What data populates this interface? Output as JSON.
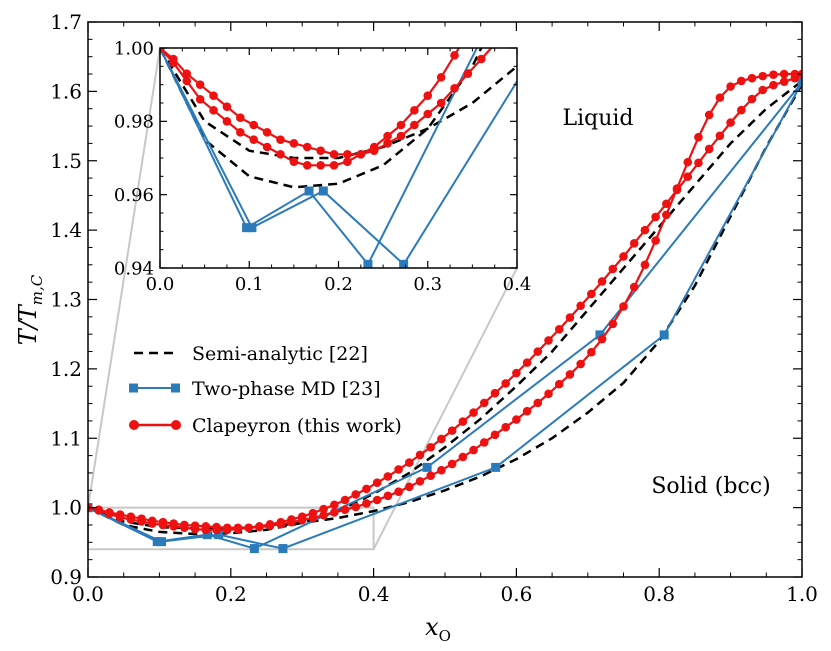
{
  "chart_data": {
    "type": "line",
    "xlabel": "x",
    "xlabel_sub": "O",
    "ylabel": "T/T",
    "ylabel_sub": "m,C",
    "xlim": [
      0.0,
      1.0
    ],
    "ylim": [
      0.9,
      1.7
    ],
    "xticks": [
      "0.0",
      "0.2",
      "0.4",
      "0.6",
      "0.8",
      "1.0"
    ],
    "yticks": [
      "0.9",
      "1.0",
      "1.1",
      "1.2",
      "1.3",
      "1.4",
      "1.5",
      "1.6",
      "1.7"
    ],
    "annotations": {
      "liquid": "Liquid",
      "solid": "Solid (bcc)"
    },
    "legend": {
      "placement": "left-middle",
      "entries": [
        "Semi-analytic [22]",
        "Two-phase MD [23]",
        "Clapeyron (this work)"
      ]
    },
    "colors": {
      "semi": "#000000",
      "md": "#2b7bba",
      "clap": "#ee1111",
      "box": "#c8c8c8"
    },
    "series": [
      {
        "name": "Semi-analytic [22]",
        "style": "dashed",
        "branch": "liquidus",
        "x": [
          0.0,
          0.05,
          0.1,
          0.15,
          0.2,
          0.25,
          0.3,
          0.35,
          0.4,
          0.45,
          0.5,
          0.55,
          0.6,
          0.65,
          0.7,
          0.75,
          0.8,
          0.85,
          0.9,
          0.95,
          1.0
        ],
        "y": [
          1.0,
          0.975,
          0.965,
          0.962,
          0.963,
          0.968,
          0.978,
          0.995,
          1.02,
          1.05,
          1.087,
          1.128,
          1.175,
          1.225,
          1.285,
          1.345,
          1.405,
          1.465,
          1.525,
          1.575,
          1.615
        ]
      },
      {
        "name": "Semi-analytic [22]",
        "style": "dashed",
        "branch": "solidus",
        "x": [
          0.0,
          0.05,
          0.1,
          0.15,
          0.2,
          0.25,
          0.3,
          0.35,
          0.4,
          0.45,
          0.5,
          0.55,
          0.6,
          0.65,
          0.7,
          0.75,
          0.8,
          0.85,
          0.9,
          0.95,
          1.0
        ],
        "y": [
          1.0,
          0.98,
          0.972,
          0.97,
          0.97,
          0.973,
          0.978,
          0.985,
          0.995,
          1.008,
          1.025,
          1.045,
          1.07,
          1.1,
          1.137,
          1.18,
          1.24,
          1.32,
          1.42,
          1.52,
          1.61
        ]
      },
      {
        "name": "Two-phase MD [23]",
        "style": "solid-square",
        "branch": "liquidus",
        "x": [
          0.0,
          0.097,
          0.167,
          0.233,
          0.475,
          0.717,
          1.0
        ],
        "y": [
          1.0,
          0.951,
          0.961,
          0.941,
          1.058,
          1.249,
          1.613
        ]
      },
      {
        "name": "Two-phase MD [23]",
        "style": "solid-square",
        "branch": "solidus",
        "x": [
          0.0,
          0.103,
          0.183,
          0.273,
          0.571,
          0.807,
          1.0
        ],
        "y": [
          1.0,
          0.951,
          0.961,
          0.941,
          1.058,
          1.249,
          1.613
        ]
      },
      {
        "name": "Clapeyron (this work)",
        "style": "solid-circle",
        "branch": "liquidus",
        "x": [
          0.0,
          0.015,
          0.03,
          0.045,
          0.06,
          0.075,
          0.09,
          0.105,
          0.12,
          0.135,
          0.15,
          0.165,
          0.18,
          0.195,
          0.21,
          0.225,
          0.24,
          0.255,
          0.27,
          0.285,
          0.3,
          0.315,
          0.33,
          0.345,
          0.36,
          0.375,
          0.39,
          0.405,
          0.42,
          0.435,
          0.45,
          0.465,
          0.48,
          0.495,
          0.51,
          0.525,
          0.54,
          0.555,
          0.57,
          0.585,
          0.6,
          0.615,
          0.63,
          0.645,
          0.66,
          0.675,
          0.69,
          0.705,
          0.72,
          0.735,
          0.75,
          0.765,
          0.78,
          0.795,
          0.81,
          0.825,
          0.84,
          0.855,
          0.87,
          0.885,
          0.9,
          0.915,
          0.93,
          0.945,
          0.96,
          0.975,
          0.99,
          1.0
        ],
        "y": [
          1.0,
          0.996,
          0.991,
          0.986,
          0.983,
          0.98,
          0.977,
          0.975,
          0.973,
          0.971,
          0.969,
          0.968,
          0.968,
          0.968,
          0.969,
          0.971,
          0.973,
          0.976,
          0.979,
          0.983,
          0.987,
          0.992,
          0.998,
          1.004,
          1.011,
          1.019,
          1.027,
          1.036,
          1.045,
          1.055,
          1.065,
          1.076,
          1.087,
          1.099,
          1.111,
          1.124,
          1.137,
          1.151,
          1.165,
          1.179,
          1.194,
          1.209,
          1.225,
          1.241,
          1.257,
          1.274,
          1.291,
          1.308,
          1.326,
          1.344,
          1.362,
          1.381,
          1.4,
          1.419,
          1.438,
          1.458,
          1.477,
          1.497,
          1.517,
          1.536,
          1.555,
          1.573,
          1.589,
          1.602,
          1.609,
          1.614,
          1.619,
          1.625
        ]
      },
      {
        "name": "Clapeyron (this work)",
        "style": "solid-circle",
        "branch": "solidus",
        "x": [
          0.0,
          0.015,
          0.03,
          0.045,
          0.06,
          0.075,
          0.09,
          0.105,
          0.12,
          0.135,
          0.15,
          0.165,
          0.18,
          0.195,
          0.21,
          0.225,
          0.24,
          0.255,
          0.27,
          0.285,
          0.3,
          0.315,
          0.33,
          0.345,
          0.36,
          0.375,
          0.39,
          0.405,
          0.42,
          0.435,
          0.45,
          0.465,
          0.48,
          0.495,
          0.51,
          0.525,
          0.54,
          0.555,
          0.57,
          0.585,
          0.6,
          0.615,
          0.63,
          0.645,
          0.66,
          0.675,
          0.69,
          0.705,
          0.72,
          0.735,
          0.75,
          0.765,
          0.78,
          0.795,
          0.81,
          0.825,
          0.84,
          0.855,
          0.87,
          0.885,
          0.9,
          0.915,
          0.93,
          0.945,
          0.96,
          0.975,
          0.99,
          1.0
        ],
        "y": [
          1.0,
          0.997,
          0.993,
          0.99,
          0.987,
          0.984,
          0.981,
          0.979,
          0.977,
          0.975,
          0.974,
          0.973,
          0.972,
          0.971,
          0.971,
          0.971,
          0.972,
          0.974,
          0.976,
          0.979,
          0.982,
          0.985,
          0.989,
          0.993,
          0.997,
          1.001,
          1.006,
          1.011,
          1.017,
          1.023,
          1.03,
          1.038,
          1.046,
          1.054,
          1.063,
          1.073,
          1.083,
          1.094,
          1.105,
          1.116,
          1.127,
          1.139,
          1.151,
          1.164,
          1.178,
          1.192,
          1.207,
          1.224,
          1.243,
          1.265,
          1.29,
          1.318,
          1.35,
          1.385,
          1.422,
          1.46,
          1.498,
          1.534,
          1.566,
          1.591,
          1.607,
          1.615,
          1.619,
          1.622,
          1.624,
          1.625,
          1.625,
          1.625
        ]
      }
    ],
    "inset": {
      "xlim": [
        0.0,
        0.4
      ],
      "ylim": [
        0.94,
        1.0
      ],
      "xticks": [
        "0.0",
        "0.1",
        "0.2",
        "0.3",
        "0.4"
      ],
      "yticks": [
        "0.94",
        "0.96",
        "0.98",
        "1.00"
      ],
      "zoom_box": {
        "x": [
          0.0,
          0.4
        ],
        "y": [
          0.94,
          1.0
        ]
      }
    }
  }
}
